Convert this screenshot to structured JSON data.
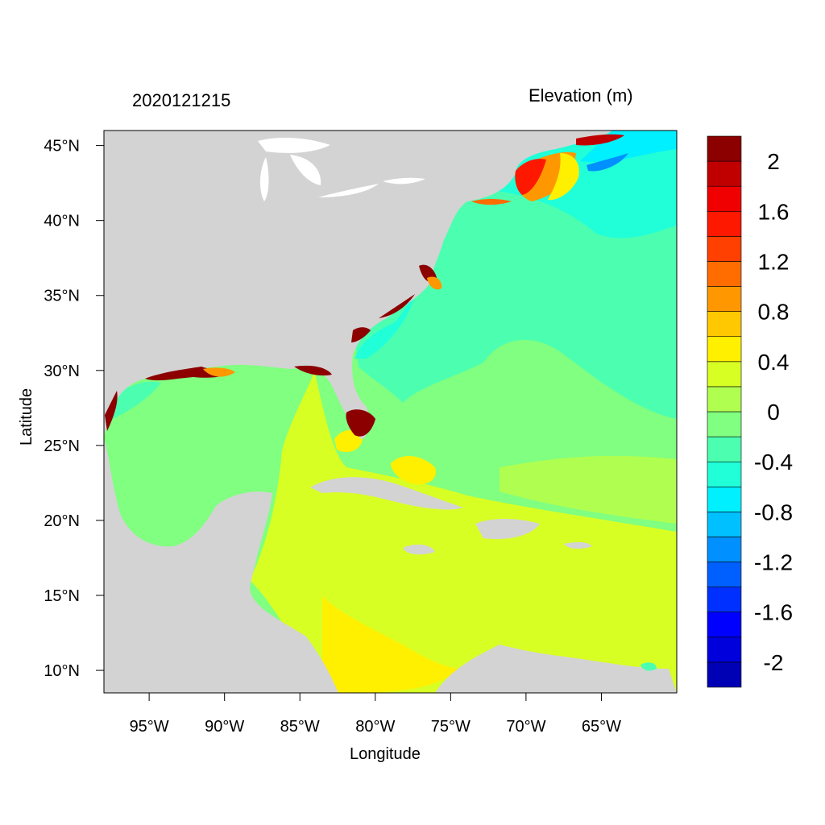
{
  "header": {
    "date_label": "2020121215",
    "variable_label": "Elevation (m)"
  },
  "map": {
    "xlabel": "Longitude",
    "ylabel": "Latitude",
    "lon_range": [
      -98,
      -60
    ],
    "lat_range": [
      8.5,
      46
    ],
    "x_ticks": [
      {
        "value": -95,
        "label": "95°W"
      },
      {
        "value": -90,
        "label": "90°W"
      },
      {
        "value": -85,
        "label": "85°W"
      },
      {
        "value": -80,
        "label": "80°W"
      },
      {
        "value": -75,
        "label": "75°W"
      },
      {
        "value": -70,
        "label": "70°W"
      },
      {
        "value": -65,
        "label": "65°W"
      }
    ],
    "y_ticks": [
      {
        "value": 45,
        "label": "45°N"
      },
      {
        "value": 40,
        "label": "40°N"
      },
      {
        "value": 35,
        "label": "35°N"
      },
      {
        "value": 30,
        "label": "30°N"
      },
      {
        "value": 25,
        "label": "25°N"
      },
      {
        "value": 20,
        "label": "20°N"
      },
      {
        "value": 15,
        "label": "15°N"
      },
      {
        "value": 10,
        "label": "10°N"
      }
    ],
    "land_color": "#d3d3d3",
    "lake_color": "#ffffff"
  },
  "colorbar": {
    "colors": [
      "#0000b4",
      "#0000dc",
      "#0000ff",
      "#0030ff",
      "#0060ff",
      "#0090ff",
      "#00c0ff",
      "#00f0ff",
      "#20ffd8",
      "#4cffb0",
      "#80ff80",
      "#b0ff50",
      "#d8ff24",
      "#fff000",
      "#ffc800",
      "#ff9800",
      "#ff6c00",
      "#ff4000",
      "#ff1800",
      "#f00000",
      "#c00000",
      "#8c0000"
    ],
    "tick_labels": [
      {
        "value": 2,
        "label": "2"
      },
      {
        "value": 1.6,
        "label": "1.6"
      },
      {
        "value": 1.2,
        "label": "1.2"
      },
      {
        "value": 0.8,
        "label": "0.8"
      },
      {
        "value": 0.4,
        "label": "0.4"
      },
      {
        "value": 0,
        "label": "0"
      },
      {
        "value": -0.4,
        "label": "-0.4"
      },
      {
        "value": -0.8,
        "label": "-0.8"
      },
      {
        "value": -1.2,
        "label": "-1.2"
      },
      {
        "value": -1.6,
        "label": "-1.6"
      },
      {
        "value": -2,
        "label": "-2"
      }
    ],
    "vmin": -2.2,
    "vmax": 2.2
  }
}
